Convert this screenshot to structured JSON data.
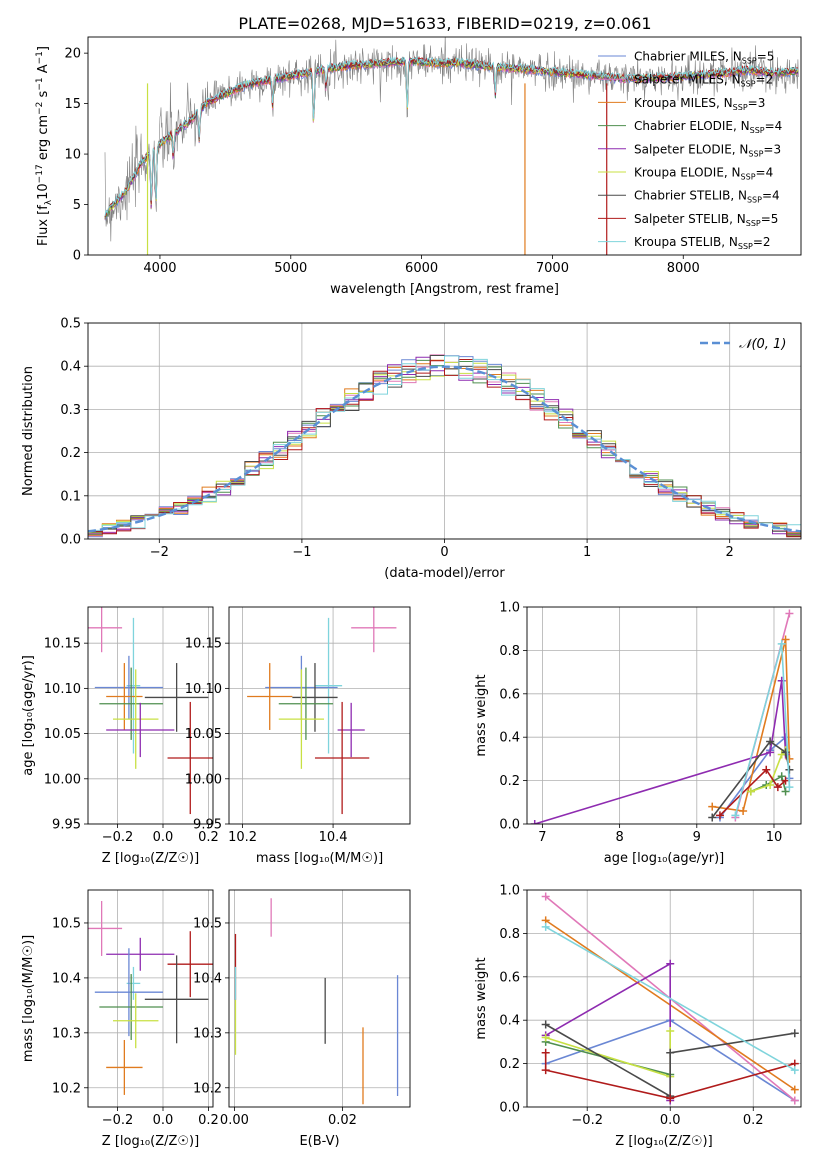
{
  "figure": {
    "title": "PLATE=0268, MJD=51633, FIBERID=0219, z=0.061"
  },
  "model_colors": {
    "Chabrier MILES": "#6a87d4",
    "Salpeter MILES": "#e078b8",
    "Kroupa MILES": "#e07b1f",
    "Chabrier ELODIE": "#4f8f4f",
    "Salpeter ELODIE": "#8e2bb0",
    "Kroupa ELODIE": "#c8e043",
    "Chabrier STELIB": "#4a4a4a",
    "Salpeter STELIB": "#b01b1b",
    "Kroupa STELIB": "#7fd4dc"
  },
  "chart_data": [
    {
      "id": "spectrum",
      "type": "line",
      "xlabel": "wavelength [Angstrom, rest frame]",
      "ylabel": "Flux [f",
      "ylabel_parts": {
        "f": "Flux [f",
        "lam": "λ",
        "base": "10",
        "exp1": "−17",
        "mid": " erg cm",
        "exp2": "−2",
        "s": " s",
        "exp3": "−1",
        "end": " A",
        "exp4": "−1",
        "close": "]"
      },
      "xlim": [
        3450,
        8900
      ],
      "ylim": [
        0,
        21.6
      ],
      "xticks": [
        4000,
        5000,
        6000,
        7000,
        8000
      ],
      "yticks": [
        0,
        5,
        10,
        15,
        20
      ],
      "grid": false,
      "legend_position": "upper-right",
      "legend": [
        {
          "model": "Chabrier MILES",
          "nssp": "5"
        },
        {
          "model": "Salpeter MILES",
          "nssp": "2"
        },
        {
          "model": "Kroupa MILES",
          "nssp": "3"
        },
        {
          "model": "Chabrier ELODIE",
          "nssp": "4"
        },
        {
          "model": "Salpeter ELODIE",
          "nssp": "3"
        },
        {
          "model": "Kroupa ELODIE",
          "nssp": "4"
        },
        {
          "model": "Chabrier STELIB",
          "nssp": "4"
        },
        {
          "model": "Salpeter STELIB",
          "nssp": "5"
        },
        {
          "model": "Kroupa STELIB",
          "nssp": "2"
        }
      ],
      "continuum": {
        "x": [
          3550,
          3650,
          3750,
          3850,
          3950,
          4050,
          4150,
          4250,
          4350,
          4500,
          4700,
          4900,
          5100,
          5300,
          5500,
          5700,
          5900,
          6100,
          6300,
          6500,
          6700,
          6900,
          7100,
          7300,
          7500,
          7700,
          7900,
          8100,
          8300,
          8500,
          8700,
          8850
        ],
        "y": [
          3.5,
          5.0,
          6.5,
          9.0,
          10.5,
          11.5,
          12.5,
          13.5,
          15.0,
          16.0,
          17.0,
          17.5,
          18.0,
          18.5,
          18.8,
          19.0,
          19.2,
          19.0,
          19.0,
          18.7,
          18.5,
          18.3,
          18.0,
          17.8,
          17.5,
          17.5,
          17.6,
          17.8,
          18.0,
          18.3,
          18.0,
          18.2
        ]
      }
    },
    {
      "id": "residuals",
      "type": "histogram",
      "xlabel": "(data-model)/error",
      "ylabel": "Normed distribution",
      "xlim": [
        -2.5,
        2.5
      ],
      "ylim": [
        0,
        0.5
      ],
      "xticks": [
        -2,
        -1,
        0,
        1,
        2
      ],
      "xtick_labels": [
        "−2",
        "−1",
        "0",
        "1",
        "2"
      ],
      "yticks": [
        0.0,
        0.1,
        0.2,
        0.3,
        0.4,
        0.5
      ],
      "ytick_labels": [
        "0.0",
        "0.1",
        "0.2",
        "0.3",
        "0.4",
        "0.5"
      ],
      "grid": true,
      "legend_position": "upper-right",
      "legend_label": "𝒩(0, 1)",
      "reference_color": "#5a8fd4",
      "bin_width": 0.1,
      "n_bins": 50
    },
    {
      "id": "age-vs-Z",
      "type": "errorbar",
      "xlabel": "Z [log₁₀(Z/Z☉)]",
      "ylabel": "age  [log₁₀(age/yr)]",
      "xlim": [
        -0.33,
        0.22
      ],
      "ylim": [
        9.95,
        10.19
      ],
      "xticks": [
        -0.2,
        0.0,
        0.2
      ],
      "xtick_labels": [
        "−0.2",
        "0.0",
        "0.2"
      ],
      "yticks": [
        9.95,
        10.0,
        10.05,
        10.1,
        10.15
      ],
      "ytick_labels": [
        "9.95",
        "10.00",
        "10.05",
        "10.10",
        "10.15"
      ],
      "grid": true,
      "points": [
        {
          "model": "Salpeter MILES",
          "x": -0.27,
          "xerr": 0.09,
          "y": 10.167,
          "yerr": 0.027
        },
        {
          "model": "Kroupa STELIB",
          "x": -0.13,
          "xerr": 0.03,
          "y": 10.103,
          "yerr": 0.075
        },
        {
          "model": "Chabrier MILES",
          "x": -0.15,
          "xerr": 0.15,
          "y": 10.101,
          "yerr": 0.035
        },
        {
          "model": "Kroupa MILES",
          "x": -0.17,
          "xerr": 0.08,
          "y": 10.091,
          "yerr": 0.037
        },
        {
          "model": "Chabrier STELIB",
          "x": 0.06,
          "xerr": 0.14,
          "y": 10.09,
          "yerr": 0.038
        },
        {
          "model": "Chabrier ELODIE",
          "x": -0.14,
          "xerr": 0.14,
          "y": 10.083,
          "yerr": 0.04
        },
        {
          "model": "Kroupa ELODIE",
          "x": -0.12,
          "xerr": 0.1,
          "y": 10.066,
          "yerr": 0.055
        },
        {
          "model": "Salpeter ELODIE",
          "x": -0.1,
          "xerr": 0.15,
          "y": 10.054,
          "yerr": 0.03
        },
        {
          "model": "Salpeter STELIB",
          "x": 0.12,
          "xerr": 0.1,
          "y": 10.023,
          "yerr": 0.062
        }
      ]
    },
    {
      "id": "age-vs-mass",
      "type": "errorbar",
      "xlabel": "mass [log₁₀(M/M☉)]",
      "xlim": [
        10.17,
        10.57
      ],
      "ylim": [
        9.95,
        10.19
      ],
      "xticks": [
        10.2,
        10.4
      ],
      "xtick_labels": [
        "10.2",
        "10.4"
      ],
      "yticks": [
        9.95,
        10.0,
        10.05,
        10.1,
        10.15
      ],
      "ytick_labels": [
        "9.95",
        "10.00",
        "10.05",
        "10.10",
        "10.15"
      ],
      "grid": true,
      "points": [
        {
          "model": "Salpeter MILES",
          "x": 10.49,
          "xerr": 0.05,
          "y": 10.167,
          "yerr": 0.027
        },
        {
          "model": "Kroupa STELIB",
          "x": 10.39,
          "xerr": 0.03,
          "y": 10.103,
          "yerr": 0.075
        },
        {
          "model": "Chabrier MILES",
          "x": 10.33,
          "xerr": 0.08,
          "y": 10.101,
          "yerr": 0.035
        },
        {
          "model": "Kroupa MILES",
          "x": 10.26,
          "xerr": 0.05,
          "y": 10.091,
          "yerr": 0.037
        },
        {
          "model": "Chabrier STELIB",
          "x": 10.36,
          "xerr": 0.05,
          "y": 10.09,
          "yerr": 0.038
        },
        {
          "model": "Chabrier ELODIE",
          "x": 10.34,
          "xerr": 0.06,
          "y": 10.083,
          "yerr": 0.04
        },
        {
          "model": "Kroupa ELODIE",
          "x": 10.33,
          "xerr": 0.05,
          "y": 10.066,
          "yerr": 0.055
        },
        {
          "model": "Salpeter ELODIE",
          "x": 10.44,
          "xerr": 0.03,
          "y": 10.054,
          "yerr": 0.03
        },
        {
          "model": "Salpeter STELIB",
          "x": 10.42,
          "xerr": 0.06,
          "y": 10.023,
          "yerr": 0.062
        }
      ]
    },
    {
      "id": "weight-vs-age",
      "type": "line",
      "xlabel": "age  [log₁₀(age/yr)]",
      "ylabel": "mass weight",
      "xlim": [
        6.8,
        10.35
      ],
      "ylim": [
        0,
        1
      ],
      "xticks": [
        7,
        8,
        9,
        10
      ],
      "yticks": [
        0.0,
        0.2,
        0.4,
        0.6,
        0.8,
        1.0
      ],
      "ytick_labels": [
        "0.0",
        "0.2",
        "0.4",
        "0.6",
        "0.8",
        "1.0"
      ],
      "grid": true,
      "series": [
        {
          "model": "Chabrier MILES",
          "x": [
            9.3,
            9.95,
            10.15,
            10.2
          ],
          "y": [
            0.03,
            0.34,
            0.4,
            0.21
          ]
        },
        {
          "model": "Salpeter MILES",
          "x": [
            9.5,
            10.2
          ],
          "y": [
            0.03,
            0.97
          ]
        },
        {
          "model": "Kroupa MILES",
          "x": [
            9.2,
            9.6,
            10.15,
            10.2
          ],
          "y": [
            0.08,
            0.06,
            0.85,
            0.3
          ]
        },
        {
          "model": "Chabrier ELODIE",
          "x": [
            9.7,
            9.9,
            10.1,
            10.15
          ],
          "y": [
            0.15,
            0.18,
            0.22,
            0.15
          ]
        },
        {
          "model": "Salpeter ELODIE",
          "x": [
            6.9,
            9.95,
            10.1,
            10.15
          ],
          "y": [
            0.0,
            0.33,
            0.66,
            0.32
          ]
        },
        {
          "model": "Kroupa ELODIE",
          "x": [
            9.7,
            9.95,
            10.1,
            10.15
          ],
          "y": [
            0.15,
            0.18,
            0.32,
            0.34
          ]
        },
        {
          "model": "Chabrier STELIB",
          "x": [
            9.2,
            9.95,
            10.15,
            10.2
          ],
          "y": [
            0.03,
            0.38,
            0.33,
            0.25
          ]
        },
        {
          "model": "Salpeter STELIB",
          "x": [
            9.3,
            9.9,
            10.05,
            10.15
          ],
          "y": [
            0.04,
            0.25,
            0.17,
            0.2
          ]
        },
        {
          "model": "Kroupa STELIB",
          "x": [
            9.5,
            10.1,
            10.2
          ],
          "y": [
            0.04,
            0.83,
            0.17
          ]
        }
      ]
    },
    {
      "id": "mass-vs-Z",
      "type": "errorbar",
      "xlabel": "Z [log₁₀(Z/Z☉)]",
      "ylabel": "mass [log₁₀(M/M☉)]",
      "xlim": [
        -0.33,
        0.22
      ],
      "ylim": [
        10.165,
        10.56
      ],
      "xticks": [
        -0.2,
        0.0,
        0.2
      ],
      "xtick_labels": [
        "−0.2",
        "0.0",
        "0.2"
      ],
      "yticks": [
        10.2,
        10.3,
        10.4,
        10.5
      ],
      "ytick_labels": [
        "10.2",
        "10.3",
        "10.4",
        "10.5"
      ],
      "grid": true,
      "points": [
        {
          "model": "Salpeter MILES",
          "x": -0.27,
          "xerr": 0.09,
          "y": 10.49,
          "yerr": 0.05
        },
        {
          "model": "Salpeter ELODIE",
          "x": -0.1,
          "xerr": 0.15,
          "y": 10.443,
          "yerr": 0.03
        },
        {
          "model": "Salpeter STELIB",
          "x": 0.12,
          "xerr": 0.1,
          "y": 10.425,
          "yerr": 0.06
        },
        {
          "model": "Kroupa STELIB",
          "x": -0.13,
          "xerr": 0.03,
          "y": 10.39,
          "yerr": 0.03
        },
        {
          "model": "Chabrier MILES",
          "x": -0.15,
          "xerr": 0.15,
          "y": 10.374,
          "yerr": 0.08
        },
        {
          "model": "Chabrier STELIB",
          "x": 0.06,
          "xerr": 0.14,
          "y": 10.361,
          "yerr": 0.08
        },
        {
          "model": "Chabrier ELODIE",
          "x": -0.14,
          "xerr": 0.14,
          "y": 10.347,
          "yerr": 0.06
        },
        {
          "model": "Kroupa ELODIE",
          "x": -0.12,
          "xerr": 0.1,
          "y": 10.322,
          "yerr": 0.05
        },
        {
          "model": "Kroupa MILES",
          "x": -0.17,
          "xerr": 0.08,
          "y": 10.237,
          "yerr": 0.05
        }
      ]
    },
    {
      "id": "mass-vs-EBV",
      "type": "errorbar",
      "xlabel": "E(B-V)",
      "xlim": [
        -0.001,
        0.0325
      ],
      "ylim": [
        10.165,
        10.56
      ],
      "xticks": [
        0.0,
        0.02
      ],
      "xtick_labels": [
        "0.00",
        "0.02"
      ],
      "yticks": [
        10.2,
        10.3,
        10.4,
        10.5
      ],
      "ytick_labels": [
        "10.2",
        "10.3",
        "10.4",
        "10.5"
      ],
      "grid": true,
      "points": [
        {
          "model": "Salpeter STELIB",
          "x": 0.0002,
          "y": 10.42,
          "yerr": 0.06
        },
        {
          "model": "Kroupa STELIB",
          "x": 0.0002,
          "y": 10.39,
          "yerr": 0.03
        },
        {
          "model": "Kroupa ELODIE",
          "x": 0.0002,
          "y": 10.31,
          "yerr": 0.05
        },
        {
          "model": "Salpeter MILES",
          "x": 0.0068,
          "y": 10.51,
          "yerr": 0.035
        },
        {
          "model": "Chabrier STELIB",
          "x": 0.0168,
          "y": 10.34,
          "yerr": 0.06
        },
        {
          "model": "Kroupa MILES",
          "x": 0.0238,
          "y": 10.24,
          "yerr": 0.07
        },
        {
          "model": "Chabrier MILES",
          "x": 0.0302,
          "y": 10.295,
          "yerr": 0.11
        }
      ]
    },
    {
      "id": "weight-vs-Z",
      "type": "line",
      "xlabel": "Z [log₁₀(Z/Z☉)]",
      "ylabel": "mass weight",
      "xlim": [
        -0.345,
        0.315
      ],
      "ylim": [
        0,
        1
      ],
      "xticks": [
        -0.2,
        0.0,
        0.2
      ],
      "xtick_labels": [
        "−0.2",
        "0.0",
        "0.2"
      ],
      "yticks": [
        0.0,
        0.2,
        0.4,
        0.6,
        0.8,
        1.0
      ],
      "ytick_labels": [
        "0.0",
        "0.2",
        "0.4",
        "0.6",
        "0.8",
        "1.0"
      ],
      "grid": true,
      "series": [
        {
          "model": "Chabrier MILES",
          "x": [
            -0.3,
            0.0,
            0.3
          ],
          "y": [
            0.2,
            0.4,
            0.03
          ]
        },
        {
          "model": "Salpeter MILES",
          "x": [
            -0.3,
            0.3
          ],
          "y": [
            0.97,
            0.03
          ]
        },
        {
          "model": "Kroupa MILES",
          "x": [
            -0.3,
            0.3
          ],
          "y": [
            0.86,
            0.08
          ]
        },
        {
          "model": "Chabrier ELODIE",
          "x": [
            -0.3,
            0.0
          ],
          "y": [
            0.3,
            0.15
          ]
        },
        {
          "model": "Salpeter ELODIE",
          "x": [
            -0.3,
            0.0,
            0.0
          ],
          "y": [
            0.33,
            0.66,
            0.03
          ]
        },
        {
          "model": "Kroupa ELODIE",
          "x": [
            -0.3,
            0.0,
            0.0
          ],
          "y": [
            0.32,
            0.14,
            0.35
          ]
        },
        {
          "model": "Chabrier STELIB",
          "x": [
            -0.3,
            0.0,
            0.0,
            0.3
          ],
          "y": [
            0.38,
            0.05,
            0.25,
            0.34
          ]
        },
        {
          "model": "Salpeter STELIB",
          "x": [
            -0.3,
            -0.3,
            0.0,
            0.3
          ],
          "y": [
            0.25,
            0.17,
            0.04,
            0.2
          ]
        },
        {
          "model": "Kroupa STELIB",
          "x": [
            -0.3,
            0.3
          ],
          "y": [
            0.83,
            0.17
          ]
        }
      ]
    }
  ]
}
